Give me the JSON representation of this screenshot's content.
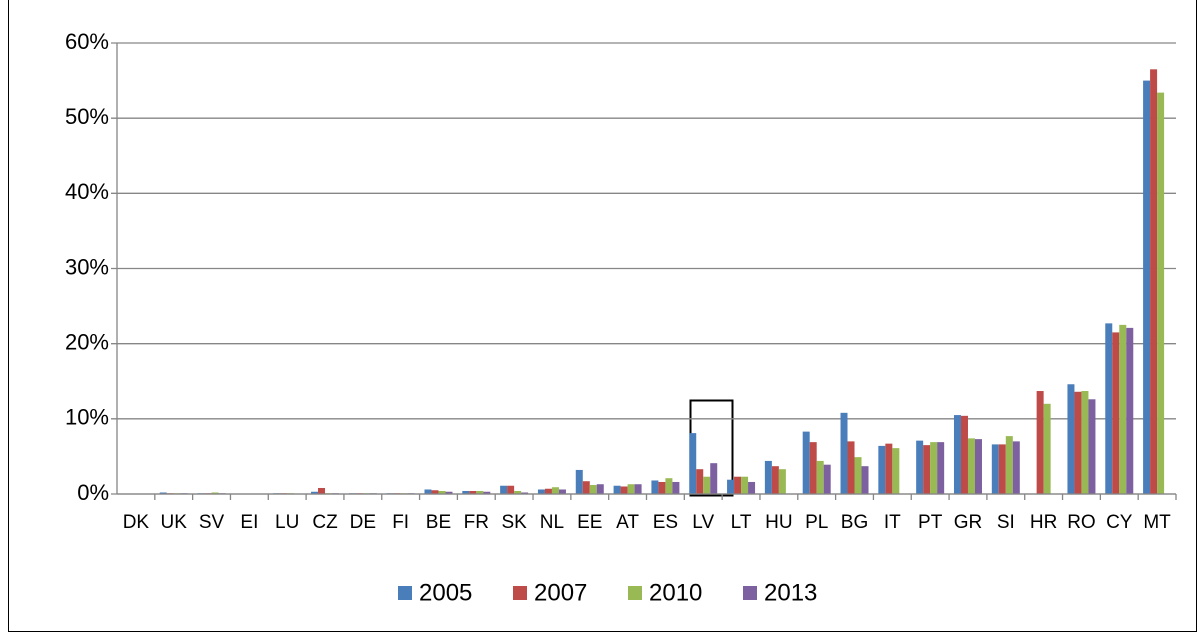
{
  "chart_data": {
    "type": "bar",
    "categories": [
      "DK",
      "UK",
      "SV",
      "EI",
      "LU",
      "CZ",
      "DE",
      "FI",
      "BE",
      "FR",
      "SK",
      "NL",
      "EE",
      "AT",
      "ES",
      "LV",
      "LT",
      "HU",
      "PL",
      "BG",
      "IT",
      "PT",
      "GR",
      "SI",
      "HR",
      "RO",
      "CY",
      "MT"
    ],
    "series": [
      {
        "name": "2005",
        "color": "#4a7ebb",
        "values": [
          0,
          0.2,
          0.1,
          0,
          0.1,
          0.3,
          0.1,
          0.1,
          0.6,
          0.4,
          1.1,
          0.6,
          3.2,
          1.1,
          1.8,
          8.1,
          1.9,
          4.4,
          8.3,
          10.8,
          6.4,
          7.1,
          10.5,
          6.6,
          null,
          14.6,
          22.7,
          55.0
        ]
      },
      {
        "name": "2007",
        "color": "#be4b48",
        "values": [
          0,
          0.1,
          0.1,
          0,
          0.1,
          0.8,
          0.1,
          0.1,
          0.5,
          0.4,
          1.1,
          0.7,
          1.7,
          1.0,
          1.6,
          3.3,
          2.3,
          3.7,
          6.9,
          7.0,
          6.7,
          6.5,
          10.4,
          6.6,
          13.7,
          13.6,
          21.5,
          56.5
        ]
      },
      {
        "name": "2010",
        "color": "#98b954",
        "values": [
          0,
          0.1,
          0.2,
          0,
          0.1,
          0.1,
          0.1,
          0.1,
          0.4,
          0.4,
          0.4,
          0.9,
          1.2,
          1.3,
          2.1,
          2.3,
          2.3,
          3.3,
          4.4,
          4.9,
          6.1,
          6.9,
          7.4,
          7.7,
          12.0,
          13.7,
          22.5,
          53.4
        ]
      },
      {
        "name": "2013",
        "color": "#7d60a0",
        "values": [
          0,
          0.1,
          0.1,
          0,
          0,
          0.1,
          0.1,
          0.1,
          0.3,
          0.3,
          0.2,
          0.6,
          1.3,
          1.3,
          1.6,
          4.1,
          1.6,
          null,
          3.9,
          3.7,
          null,
          6.9,
          7.3,
          7.0,
          null,
          12.6,
          22.1,
          null
        ]
      }
    ],
    "ylim": [
      0,
      60
    ],
    "yticks": [
      {
        "value": 0,
        "label": "0%"
      },
      {
        "value": 10,
        "label": "10%"
      },
      {
        "value": 20,
        "label": "20%"
      },
      {
        "value": 30,
        "label": "30%"
      },
      {
        "value": 40,
        "label": "40%"
      },
      {
        "value": 50,
        "label": "50%"
      },
      {
        "value": 60,
        "label": "60%"
      }
    ],
    "grid": true
  }
}
